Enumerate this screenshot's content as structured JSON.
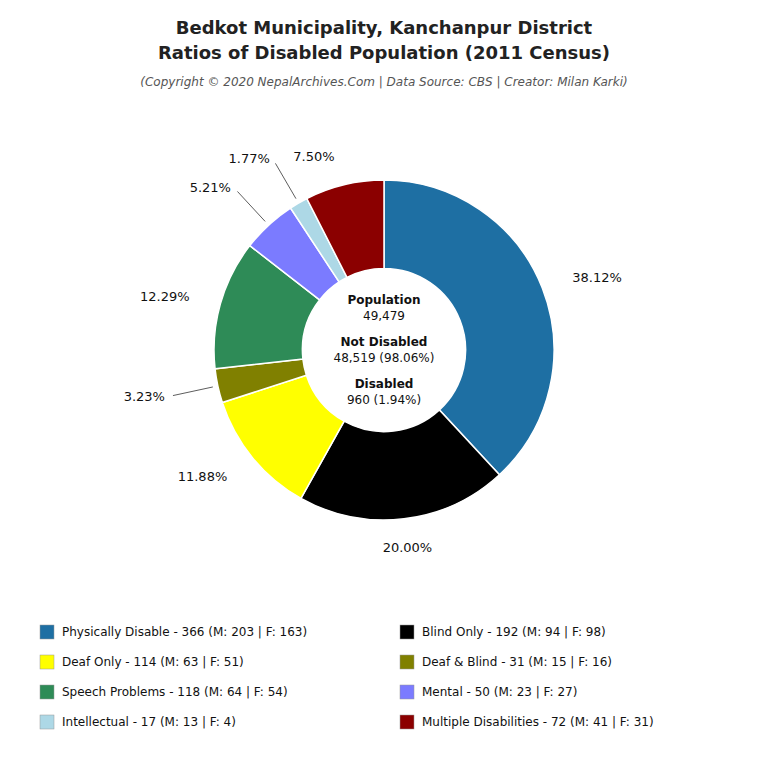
{
  "chart_data": {
    "type": "donut",
    "title": [
      "Bedkot Municipality, Kanchanpur District",
      "Ratios of Disabled Population (2011 Census)"
    ],
    "subtitle": "(Copyright © 2020 NepalArchives.Com | Data Source: CBS | Creator: Milan Karki)",
    "annotations": [
      "Population",
      "49,479",
      "Not Disabled",
      "48,519 (98.06%)",
      "Disabled",
      "960 (1.94%)"
    ],
    "categories": [
      "Physically Disable - 366 (M: 203 | F: 163)",
      "Blind Only - 192 (M: 94 | F: 98)",
      "Deaf Only - 114 (M: 63 | F: 51)",
      "Deaf & Blind - 31 (M: 15 | F: 16)",
      "Speech Problems - 118 (M: 64 | F: 54)",
      "Mental - 50 (M: 23 | F: 27)",
      "Intellectual - 17 (M: 13 | F: 4)",
      "Multiple Disabilities - 72 (M: 41 | F: 31)"
    ],
    "values": [
      38.12,
      20,
      11.88,
      3.23,
      12.29,
      5.21,
      1.77,
      7.5
    ],
    "value_labels": [
      "38.12%",
      "20.00%",
      "11.88%",
      "3.23%",
      "12.29%",
      "5.21%",
      "1.77%",
      "7.50%"
    ],
    "colors": [
      "#1e6fa3",
      "#000000",
      "#ffff00",
      "#808000",
      "#2e8b57",
      "#7b7bff",
      "#add8e6",
      "#8b0000"
    ],
    "data_labels": true,
    "legend": "bottom"
  }
}
